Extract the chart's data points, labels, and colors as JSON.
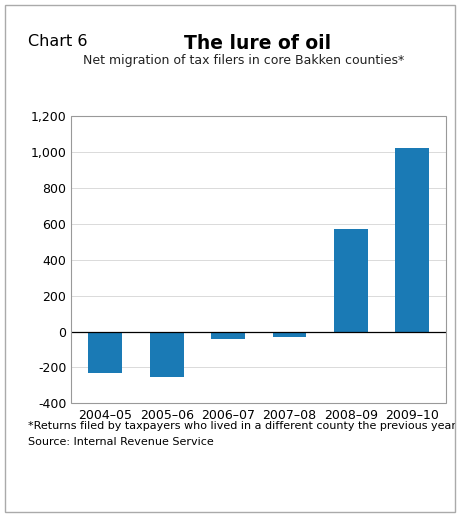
{
  "chart_label": "Chart 6",
  "title": "The lure of oil",
  "subtitle": "Net migration of tax filers in core Bakken counties*",
  "categories": [
    "2004–05",
    "2005–06",
    "2006–07",
    "2007–08",
    "2008–09",
    "2009–10"
  ],
  "values": [
    -230,
    -255,
    -40,
    -30,
    570,
    1025
  ],
  "bar_color": "#1a7ab5",
  "ylim": [
    -400,
    1200
  ],
  "yticks": [
    -400,
    -200,
    0,
    200,
    400,
    600,
    800,
    1000,
    1200
  ],
  "footnote": "*Returns filed by taxpayers who lived in a different county the previous year",
  "source": "Source: Internal Revenue Service",
  "bg_color": "#ffffff",
  "outer_border_color": "#aaaaaa"
}
